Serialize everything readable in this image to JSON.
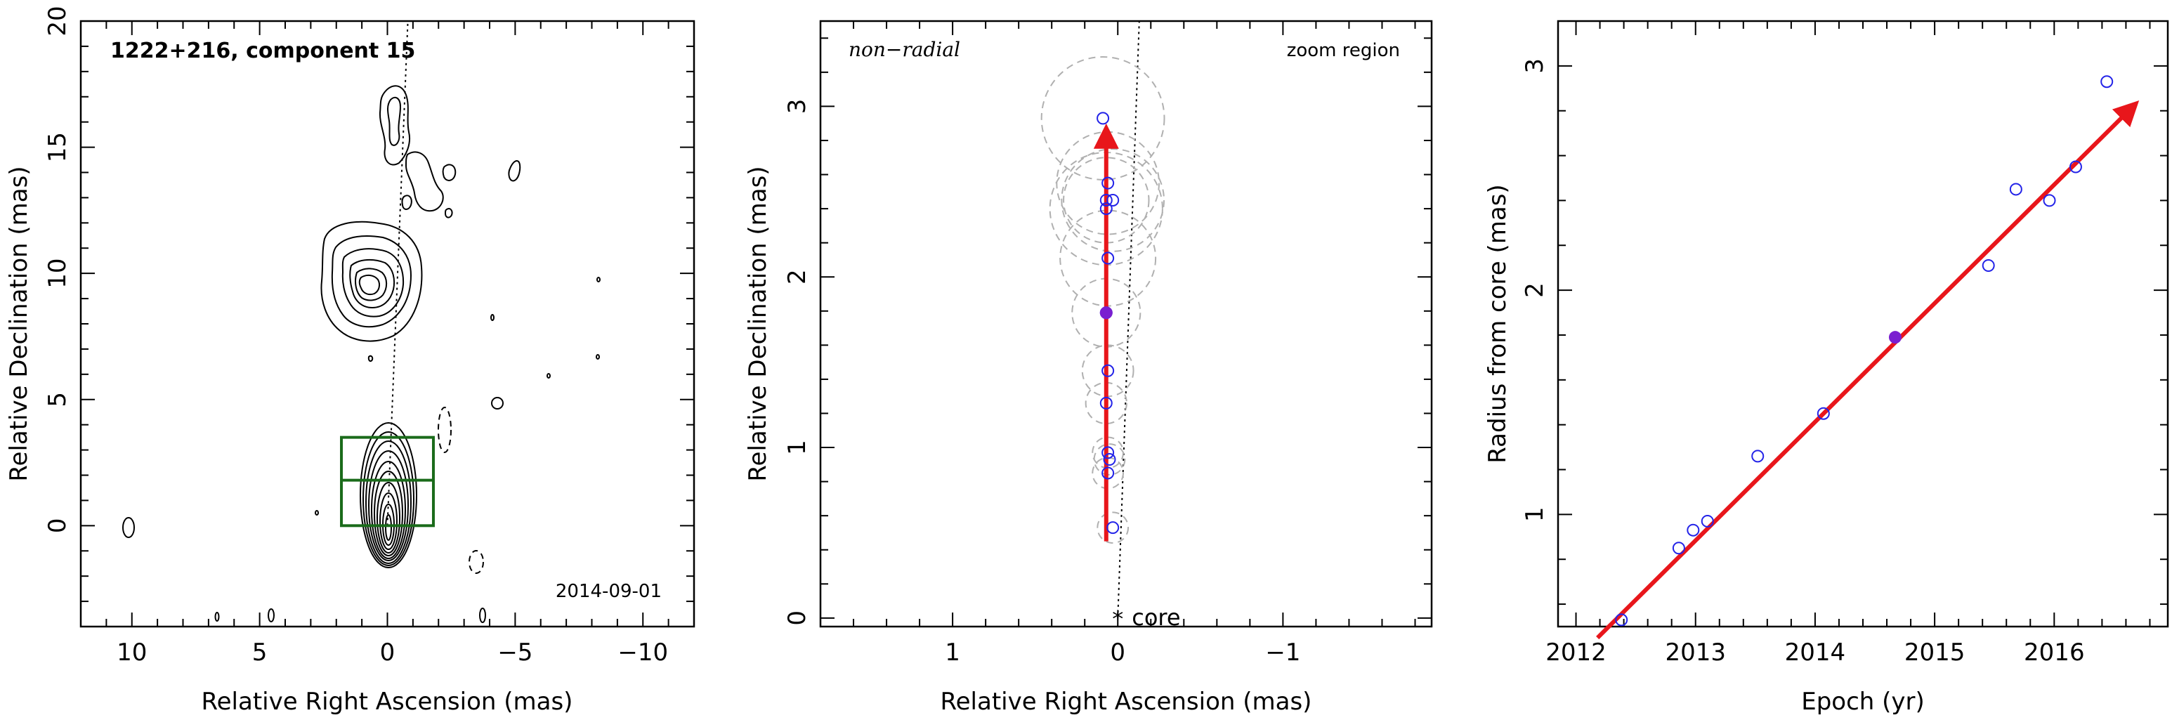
{
  "colors": {
    "arrow": "#e8161b",
    "points": "#2323e8",
    "highlight": "#7a1fd0",
    "box": "#1a6b1a",
    "ring": "#b0b0b0"
  },
  "panels": {
    "map": {
      "title": "1222+216, component 15",
      "date": "2014-09-01",
      "xlabel": "Relative Right Ascension (mas)",
      "ylabel": "Relative Declination (mas)"
    },
    "zoom": {
      "mode_label": "non−radial",
      "region_label": "zoom region",
      "core_label": "core",
      "core_marker": "*",
      "xlabel": "Relative Right Ascension (mas)",
      "ylabel": "Relative Declination (mas)"
    },
    "radius": {
      "xlabel": "Epoch (yr)",
      "ylabel": "Radius from core (mas)"
    }
  },
  "chart_data": [
    {
      "type": "contour",
      "title": "1222+216, component 15",
      "xlabel": "Relative Right Ascension (mas)",
      "ylabel": "Relative Declination (mas)",
      "xlim": [
        12,
        -12
      ],
      "ylim": [
        -4,
        20
      ],
      "xticks": [
        10,
        5,
        0,
        -5,
        -10
      ],
      "yticks": [
        0,
        5,
        10,
        15,
        20
      ],
      "xtick_labels": [
        "10",
        "5",
        "0",
        "−5",
        "−10"
      ],
      "ytick_labels": [
        "0",
        "5",
        "10",
        "15",
        "20"
      ],
      "annotation": "2014-09-01",
      "core_position": [
        0,
        0
      ],
      "bright_feature_position": [
        0.8,
        9.8
      ],
      "zoom_box": {
        "x": [
          1.8,
          -1.8
        ],
        "y": [
          0,
          3.5
        ],
        "midline_y": 1.8
      },
      "jet_ridge_line": [
        [
          0,
          0
        ],
        [
          -0.8,
          20
        ]
      ],
      "grid": false
    },
    {
      "type": "scatter",
      "xlabel": "Relative Right Ascension (mas)",
      "ylabel": "Relative Declination (mas)",
      "xlim": [
        1.8,
        -1.9
      ],
      "ylim": [
        -0.05,
        3.5
      ],
      "xticks": [
        1,
        0,
        -1
      ],
      "yticks": [
        0,
        1,
        2,
        3
      ],
      "xtick_labels": [
        "1",
        "0",
        "−1"
      ],
      "ytick_labels": [
        "0",
        "1",
        "2",
        "3"
      ],
      "annotations": [
        "non−radial",
        "zoom region",
        "core"
      ],
      "series": [
        {
          "x": [
            0.03,
            0.06,
            0.05,
            0.06,
            0.07,
            0.06,
            0.07,
            0.06,
            0.07,
            0.07,
            0.03,
            0.06,
            0.09
          ],
          "y": [
            0.53,
            0.85,
            0.93,
            0.97,
            1.26,
            1.45,
            1.79,
            2.11,
            2.4,
            2.45,
            2.45,
            2.55,
            2.93
          ],
          "ring_radius": [
            0.09,
            0.09,
            0.09,
            0.09,
            0.12,
            0.15,
            0.2,
            0.28,
            0.33,
            0.25,
            0.3,
            0.3,
            0.36
          ]
        }
      ],
      "highlight": {
        "x": 0.07,
        "y": 1.79
      },
      "arrow": {
        "from": [
          0.07,
          0.45
        ],
        "to": [
          0.07,
          2.87
        ]
      },
      "core": [
        0,
        0
      ],
      "grid": false
    },
    {
      "type": "scatter",
      "xlabel": "Epoch (yr)",
      "ylabel": "Radius from core (mas)",
      "xlim": [
        2011.85,
        2016.95
      ],
      "ylim": [
        0.5,
        3.2
      ],
      "xticks": [
        2012,
        2013,
        2014,
        2015,
        2016
      ],
      "yticks": [
        1,
        2,
        3
      ],
      "xtick_labels": [
        "2012",
        "2013",
        "2014",
        "2015",
        "2016"
      ],
      "ytick_labels": [
        "1",
        "2",
        "3"
      ],
      "series": [
        {
          "x": [
            2012.38,
            2012.86,
            2012.98,
            2013.1,
            2013.52,
            2014.07,
            2015.45,
            2015.68,
            2015.96,
            2016.18,
            2016.44
          ],
          "y": [
            0.53,
            0.85,
            0.93,
            0.97,
            1.26,
            1.45,
            2.11,
            2.45,
            2.4,
            2.55,
            2.93
          ]
        }
      ],
      "highlight": {
        "x": 2014.67,
        "y": 1.79
      },
      "fit_arrow": {
        "from": [
          2012.18,
          0.45
        ],
        "to": [
          2016.68,
          2.83
        ]
      },
      "grid": false
    }
  ]
}
